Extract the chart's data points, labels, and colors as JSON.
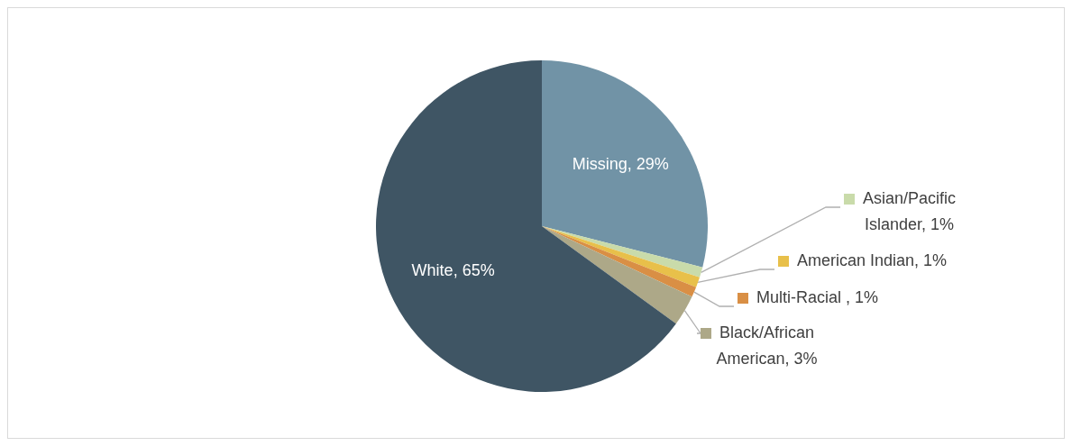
{
  "chart_data": {
    "type": "pie",
    "categories": [
      "Missing",
      "Asian/Pacific Islander",
      "American Indian",
      "Multi-Racial ",
      "Black/African American",
      "White"
    ],
    "values": [
      29,
      1,
      1,
      1,
      3,
      65
    ],
    "colors": [
      "#7193a6",
      "#c9dbaa",
      "#e8c04a",
      "#d98f45",
      "#ada888",
      "#3f5564"
    ],
    "value_labels": [
      "29%",
      "1%",
      "1%",
      "1%",
      "3%",
      "65%"
    ],
    "legend": "right"
  }
}
